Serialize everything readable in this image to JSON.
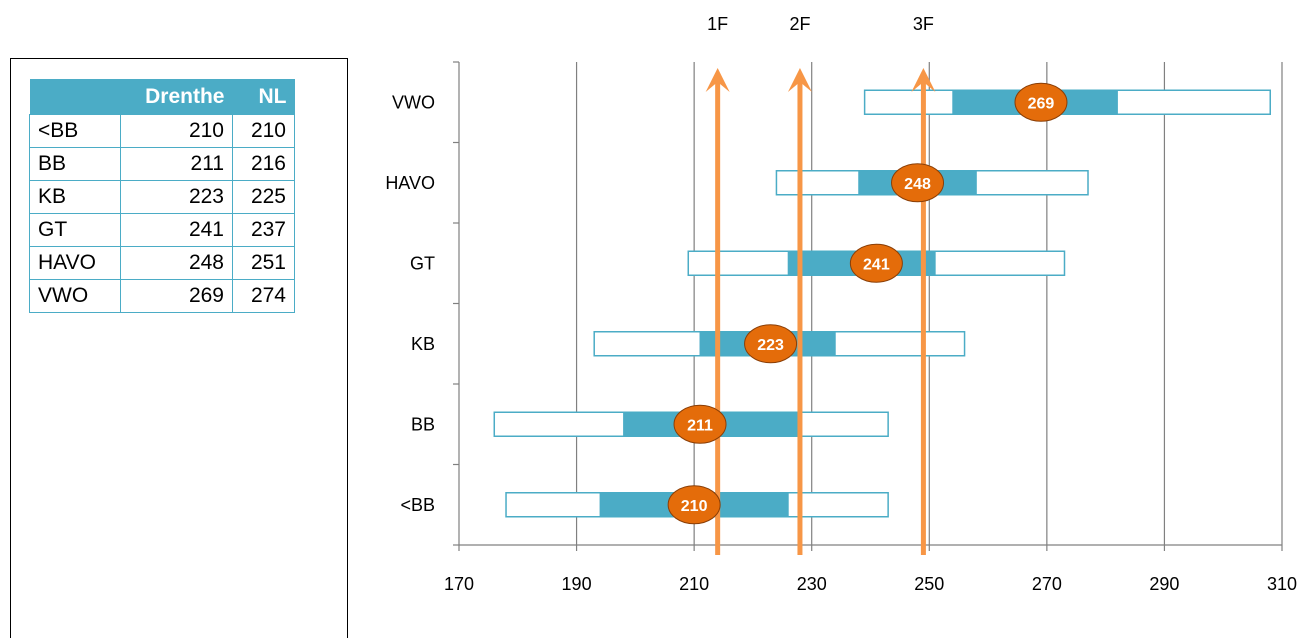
{
  "table": {
    "headers": [
      "",
      "Drenthe",
      "NL"
    ],
    "rows": [
      {
        "label": "<BB",
        "drenthe": "210",
        "nl": "210"
      },
      {
        "label": "BB",
        "drenthe": "211",
        "nl": "216"
      },
      {
        "label": "KB",
        "drenthe": "223",
        "nl": "225"
      },
      {
        "label": "GT",
        "drenthe": "241",
        "nl": "237"
      },
      {
        "label": "HAVO",
        "drenthe": "248",
        "nl": "251"
      },
      {
        "label": "VWO",
        "drenthe": "269",
        "nl": "274"
      }
    ]
  },
  "chart_data": {
    "type": "range-bar",
    "categories": [
      "<BB",
      "BB",
      "KB",
      "GT",
      "HAVO",
      "VWO"
    ],
    "outer_range": [
      [
        178,
        243
      ],
      [
        176,
        243
      ],
      [
        193,
        256
      ],
      [
        209,
        273
      ],
      [
        224,
        277
      ],
      [
        239,
        308
      ]
    ],
    "inner_range": [
      [
        194,
        226
      ],
      [
        198,
        228
      ],
      [
        211,
        234
      ],
      [
        226,
        251
      ],
      [
        238,
        258
      ],
      [
        254,
        282
      ]
    ],
    "badge_values": [
      210,
      211,
      223,
      241,
      248,
      269
    ],
    "reference_lines": [
      {
        "label": "1F",
        "x": 214
      },
      {
        "label": "2F",
        "x": 228
      },
      {
        "label": "3F",
        "x": 249
      }
    ],
    "xlim": [
      170,
      310
    ],
    "xticks": [
      170,
      190,
      210,
      230,
      250,
      270,
      290,
      310
    ],
    "grid": true,
    "colors": {
      "outer_border": "#4bacc6",
      "inner_fill": "#4bacc6",
      "badge_fill": "#e46c0a",
      "arrow": "#f79646",
      "grid": "#808080"
    }
  }
}
